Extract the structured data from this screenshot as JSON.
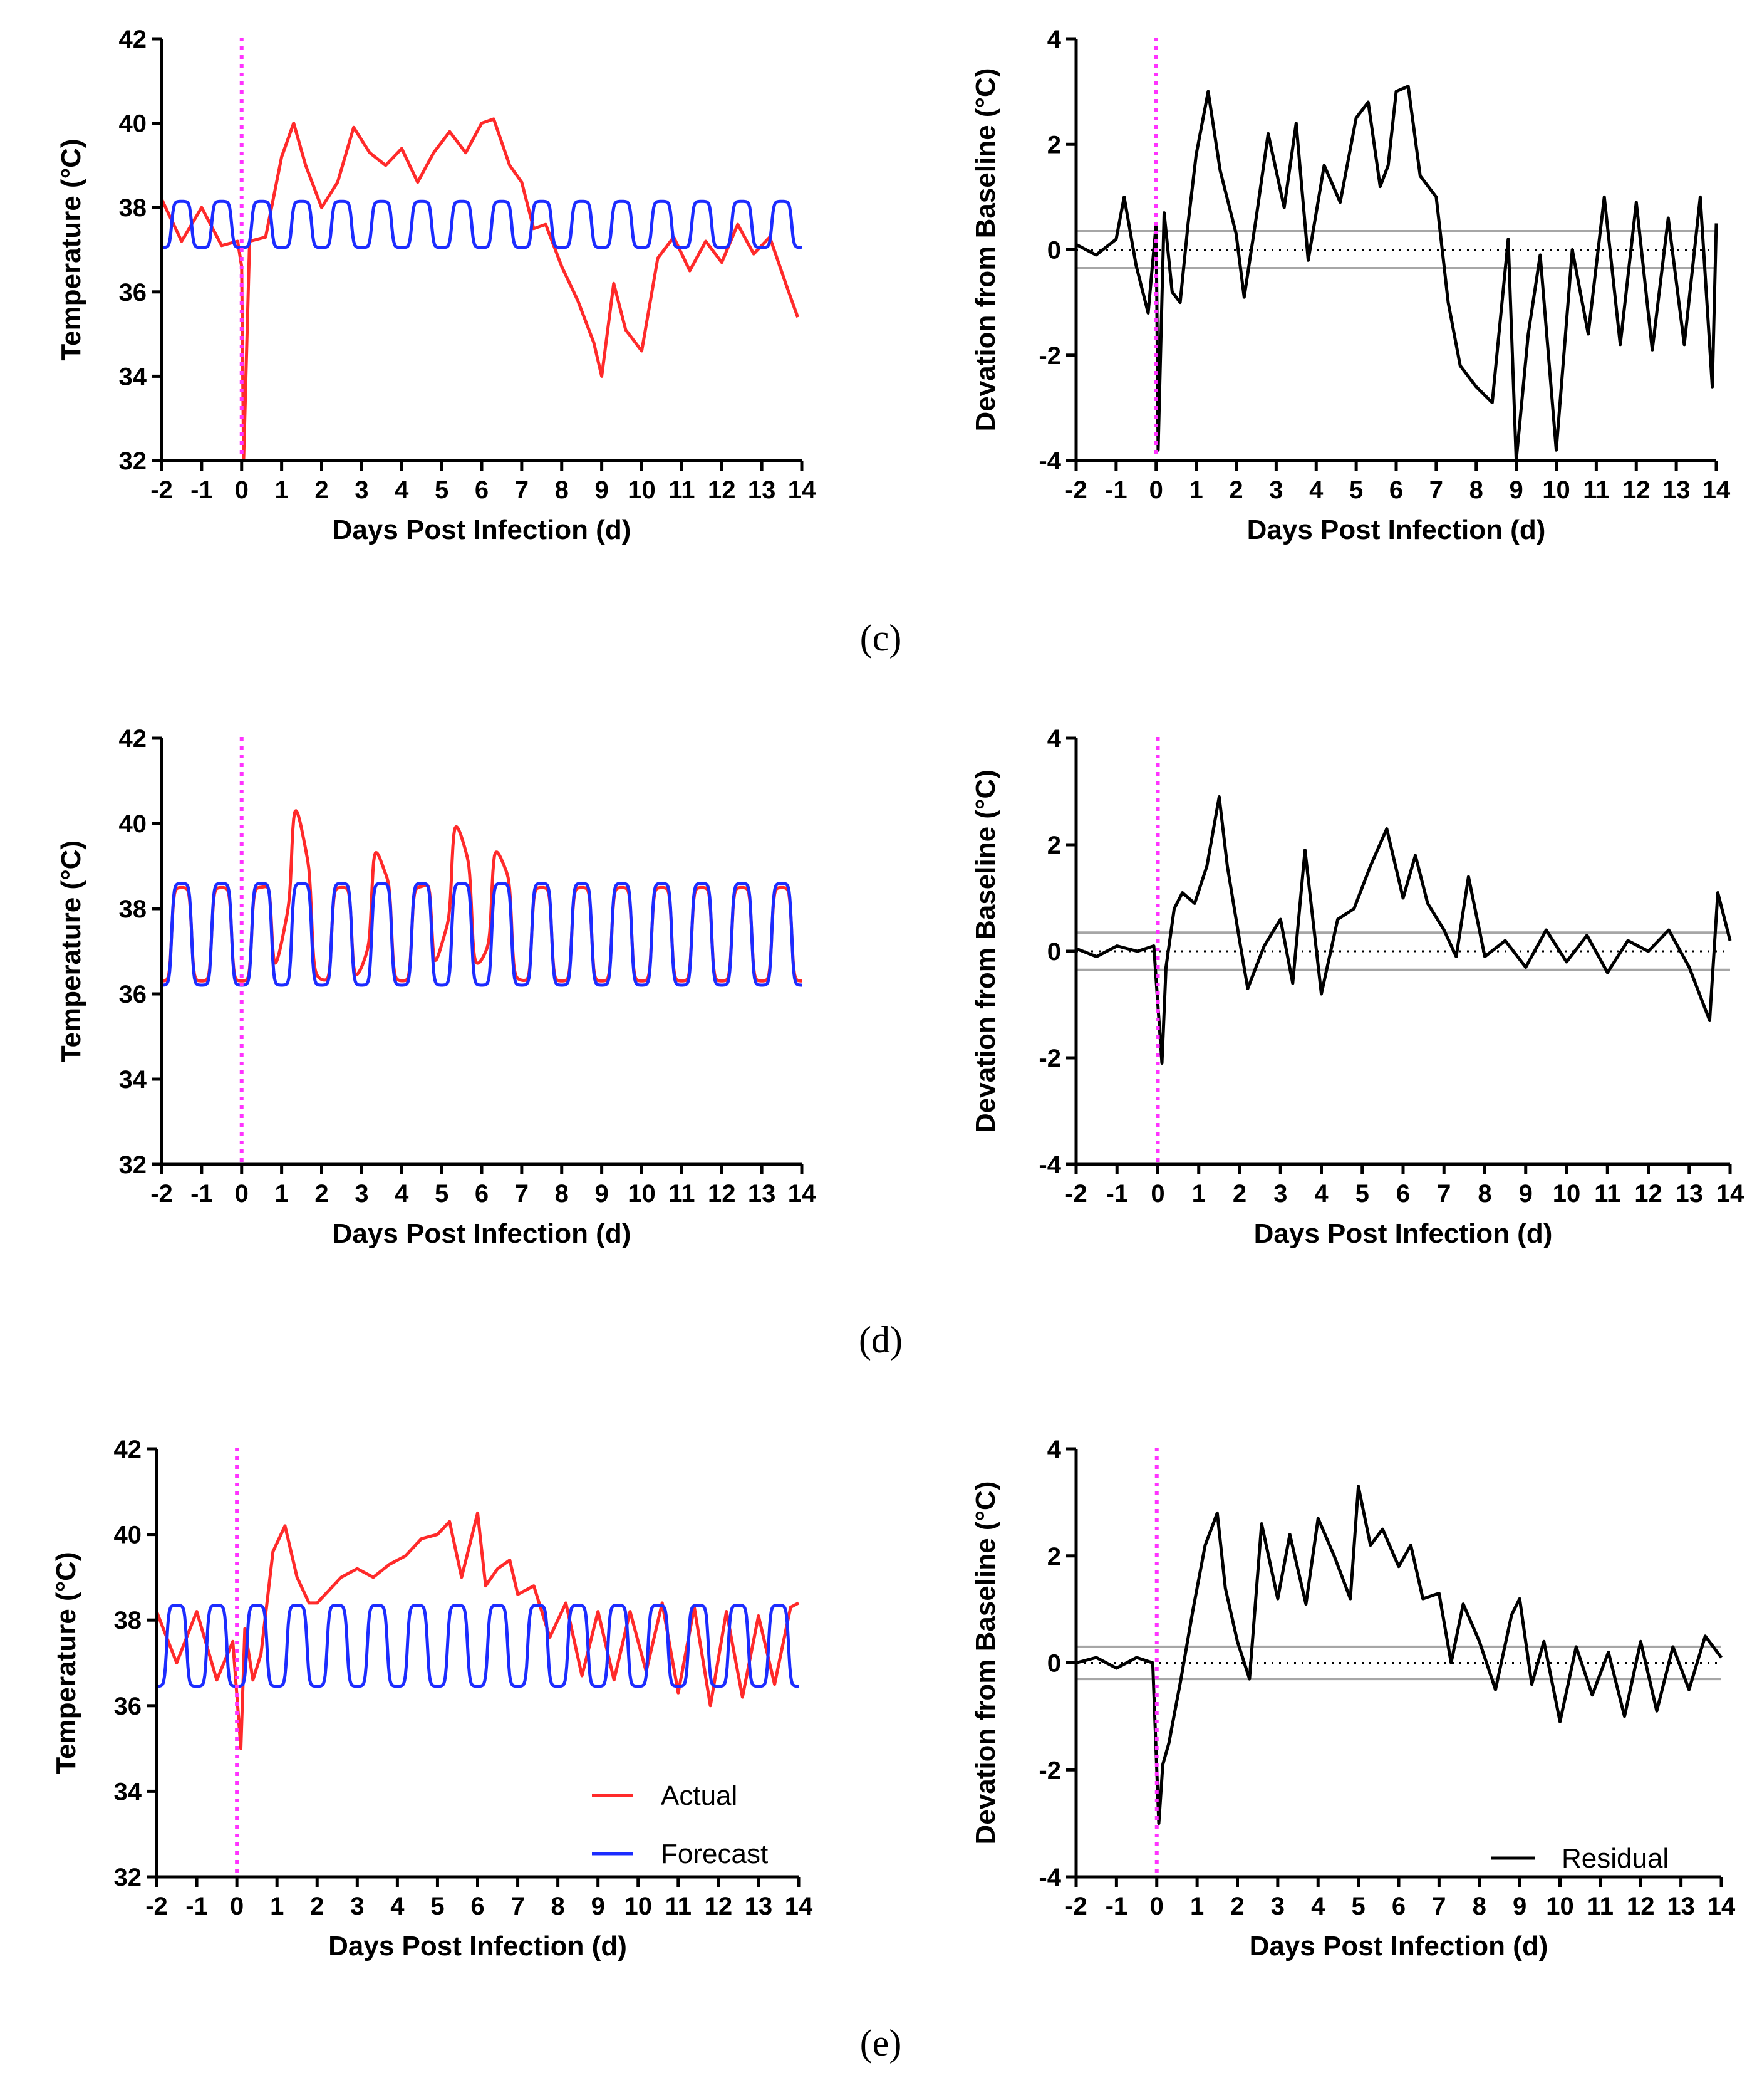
{
  "chart_data": [
    {
      "type": "line",
      "panel": "c",
      "side": "left",
      "xlabel": "Days Post Infection (d)",
      "ylabel": "Temperature (°C)",
      "xlim": [
        -2,
        14
      ],
      "ylim": [
        32,
        42
      ],
      "xticks": [
        "-2",
        "-1",
        "0",
        "1",
        "2",
        "3",
        "4",
        "5",
        "6",
        "7",
        "8",
        "9",
        "10",
        "11",
        "12",
        "13",
        "14"
      ],
      "yticks": [
        "32",
        "34",
        "36",
        "38",
        "40",
        "42"
      ],
      "infection_line_x": 0,
      "series": [
        {
          "name": "Actual",
          "color": "#ff2a2a",
          "x": [
            -2,
            -1.5,
            -1,
            -0.5,
            -0.1,
            0,
            0.05,
            0.2,
            0.6,
            1.0,
            1.3,
            1.6,
            2.0,
            2.4,
            2.8,
            3.2,
            3.6,
            4.0,
            4.4,
            4.8,
            5.2,
            5.6,
            6.0,
            6.3,
            6.7,
            7.0,
            7.3,
            7.6,
            8.0,
            8.4,
            8.8,
            9.0,
            9.3,
            9.6,
            10.0,
            10.4,
            10.8,
            11.2,
            11.6,
            12.0,
            12.4,
            12.8,
            13.2,
            13.6,
            13.9
          ],
          "y": [
            38.2,
            37.2,
            38.0,
            37.1,
            37.2,
            36.6,
            32.0,
            37.2,
            37.3,
            39.2,
            40.0,
            39.0,
            38.0,
            38.6,
            39.9,
            39.3,
            39.0,
            39.4,
            38.6,
            39.3,
            39.8,
            39.3,
            40.0,
            40.1,
            39.0,
            38.6,
            37.5,
            37.6,
            36.6,
            35.8,
            34.8,
            34.0,
            36.2,
            35.1,
            34.6,
            36.8,
            37.3,
            36.5,
            37.2,
            36.7,
            37.6,
            36.9,
            37.3,
            36.2,
            35.4
          ]
        },
        {
          "name": "Forecast",
          "color": "#1c2cff",
          "period": 1,
          "center": 37.6,
          "amplitude": 0.55,
          "x_start": -2,
          "x_end": 14
        }
      ]
    },
    {
      "type": "line",
      "panel": "c",
      "side": "right",
      "xlabel": "Days Post Infection (d)",
      "ylabel": "Devation from Baseline (°C)",
      "xlim": [
        -2,
        14
      ],
      "ylim": [
        -4,
        4
      ],
      "xticks": [
        "-2",
        "-1",
        "0",
        "1",
        "2",
        "3",
        "4",
        "5",
        "6",
        "7",
        "8",
        "9",
        "10",
        "11",
        "12",
        "13",
        "14"
      ],
      "yticks": [
        "-4",
        "-2",
        "0",
        "2",
        "4"
      ],
      "infection_line_x": 0,
      "baseline_band": [
        -0.35,
        0.35
      ],
      "series": [
        {
          "name": "Residual",
          "color": "#000000",
          "x": [
            -2,
            -1.5,
            -1,
            -0.8,
            -0.5,
            -0.2,
            0,
            0.05,
            0.2,
            0.4,
            0.6,
            0.8,
            1.0,
            1.3,
            1.6,
            2.0,
            2.2,
            2.5,
            2.8,
            3.2,
            3.5,
            3.8,
            4.2,
            4.6,
            5.0,
            5.3,
            5.6,
            5.8,
            6.0,
            6.3,
            6.6,
            7.0,
            7.3,
            7.6,
            8.0,
            8.4,
            8.8,
            9.0,
            9.3,
            9.6,
            10.0,
            10.4,
            10.8,
            11.2,
            11.6,
            12.0,
            12.4,
            12.8,
            13.2,
            13.6,
            13.9,
            14
          ],
          "y": [
            0.1,
            -0.1,
            0.2,
            1.0,
            -0.3,
            -1.2,
            0.5,
            -3.8,
            0.7,
            -0.8,
            -1.0,
            0.5,
            1.8,
            3.0,
            1.5,
            0.3,
            -0.9,
            0.6,
            2.2,
            0.8,
            2.4,
            -0.2,
            1.6,
            0.9,
            2.5,
            2.8,
            1.2,
            1.6,
            3.0,
            3.1,
            1.4,
            1.0,
            -1.0,
            -2.2,
            -2.6,
            -2.9,
            0.2,
            -4.0,
            -1.6,
            -0.1,
            -3.8,
            0.0,
            -1.6,
            1.0,
            -1.8,
            0.9,
            -1.9,
            0.6,
            -1.8,
            1.0,
            -2.6,
            0.5
          ]
        }
      ]
    },
    {
      "type": "line",
      "panel": "d",
      "side": "left",
      "xlabel": "Days Post Infection (d)",
      "ylabel": "Temperature (°C)",
      "xlim": [
        -2,
        14
      ],
      "ylim": [
        32,
        42
      ],
      "xticks": [
        "-2",
        "-1",
        "0",
        "1",
        "2",
        "3",
        "4",
        "5",
        "6",
        "7",
        "8",
        "9",
        "10",
        "11",
        "12",
        "13",
        "14"
      ],
      "yticks": [
        "32",
        "34",
        "36",
        "38",
        "40",
        "42"
      ],
      "infection_line_x": 0,
      "series": [
        {
          "name": "Actual",
          "color": "#ff2a2a",
          "period": 1,
          "center": 37.4,
          "amplitude": 1.1,
          "x_start": -2,
          "x_end": 14,
          "bumps": [
            {
              "x": 1.3,
              "height": 1.9,
              "width": 0.35
            },
            {
              "x": 3.3,
              "height": 0.9,
              "width": 0.3
            },
            {
              "x": 5.3,
              "height": 1.5,
              "width": 0.4
            },
            {
              "x": 6.3,
              "height": 0.9,
              "width": 0.35
            }
          ]
        },
        {
          "name": "Forecast",
          "color": "#1c2cff",
          "period": 1,
          "center": 37.4,
          "amplitude": 1.2,
          "x_start": -2,
          "x_end": 14
        }
      ]
    },
    {
      "type": "line",
      "panel": "d",
      "side": "right",
      "xlabel": "Days Post Infection (d)",
      "ylabel": "Devation from Baseline (°C)",
      "xlim": [
        -2,
        14
      ],
      "ylim": [
        -4,
        4
      ],
      "xticks": [
        "-2",
        "-1",
        "0",
        "1",
        "2",
        "3",
        "4",
        "5",
        "6",
        "7",
        "8",
        "9",
        "10",
        "11",
        "12",
        "13",
        "14"
      ],
      "yticks": [
        "-4",
        "-2",
        "0",
        "2",
        "4"
      ],
      "infection_line_x": 0,
      "baseline_band": [
        -0.35,
        0.35
      ],
      "series": [
        {
          "name": "Residual",
          "color": "#000000",
          "x": [
            -2,
            -1.5,
            -1,
            -0.5,
            -0.1,
            0.1,
            0.2,
            0.4,
            0.6,
            0.9,
            1.2,
            1.5,
            1.7,
            2.0,
            2.2,
            2.6,
            3.0,
            3.3,
            3.6,
            4.0,
            4.4,
            4.8,
            5.2,
            5.6,
            6.0,
            6.3,
            6.6,
            7.0,
            7.3,
            7.6,
            8.0,
            8.5,
            9.0,
            9.5,
            10.0,
            10.5,
            11.0,
            11.5,
            12.0,
            12.5,
            13.0,
            13.5,
            13.7,
            14
          ],
          "y": [
            0.05,
            -0.1,
            0.1,
            0.0,
            0.1,
            -2.1,
            -0.3,
            0.8,
            1.1,
            0.9,
            1.6,
            2.9,
            1.6,
            0.2,
            -0.7,
            0.1,
            0.6,
            -0.6,
            1.9,
            -0.8,
            0.6,
            0.8,
            1.6,
            2.3,
            1.0,
            1.8,
            0.9,
            0.4,
            -0.1,
            1.4,
            -0.1,
            0.2,
            -0.3,
            0.4,
            -0.2,
            0.3,
            -0.4,
            0.2,
            0.0,
            0.4,
            -0.3,
            -1.3,
            1.1,
            0.2
          ]
        }
      ]
    },
    {
      "type": "line",
      "panel": "e",
      "side": "left",
      "xlabel": "Days Post Infection (d)",
      "ylabel": "Temperature (°C)",
      "xlim": [
        -2,
        14
      ],
      "ylim": [
        32,
        42
      ],
      "xticks": [
        "-2",
        "-1",
        "0",
        "1",
        "2",
        "3",
        "4",
        "5",
        "6",
        "7",
        "8",
        "9",
        "10",
        "11",
        "12",
        "13",
        "14"
      ],
      "yticks": [
        "32",
        "34",
        "36",
        "38",
        "40",
        "42"
      ],
      "infection_line_x": 0,
      "legend": {
        "position": "bottom-right",
        "entries": [
          "Actual",
          "Forecast"
        ]
      },
      "series": [
        {
          "name": "Actual",
          "color": "#ff2a2a",
          "x": [
            -2,
            -1.5,
            -1,
            -0.5,
            -0.1,
            0.1,
            0.2,
            0.4,
            0.6,
            0.9,
            1.2,
            1.5,
            1.8,
            2.0,
            2.3,
            2.6,
            3.0,
            3.4,
            3.8,
            4.2,
            4.6,
            5.0,
            5.3,
            5.6,
            6.0,
            6.2,
            6.5,
            6.8,
            7.0,
            7.4,
            7.8,
            8.2,
            8.6,
            9.0,
            9.4,
            9.8,
            10.2,
            10.6,
            11.0,
            11.4,
            11.8,
            12.2,
            12.6,
            13.0,
            13.4,
            13.8,
            14
          ],
          "y": [
            38.2,
            37.0,
            38.2,
            36.6,
            37.5,
            35.0,
            37.8,
            36.6,
            37.2,
            39.6,
            40.2,
            39.0,
            38.4,
            38.4,
            38.7,
            39.0,
            39.2,
            39.0,
            39.3,
            39.5,
            39.9,
            40.0,
            40.3,
            39.0,
            40.5,
            38.8,
            39.2,
            39.4,
            38.6,
            38.8,
            37.6,
            38.4,
            36.7,
            38.2,
            36.6,
            38.2,
            36.8,
            38.4,
            36.3,
            38.3,
            36.0,
            38.2,
            36.2,
            38.1,
            36.5,
            38.3,
            38.4
          ]
        },
        {
          "name": "Forecast",
          "color": "#1c2cff",
          "period": 1,
          "center": 37.4,
          "amplitude": 0.95,
          "x_start": -2,
          "x_end": 14
        }
      ]
    },
    {
      "type": "line",
      "panel": "e",
      "side": "right",
      "xlabel": "Days Post Infection (d)",
      "ylabel": "Devation from Baseline (°C)",
      "xlim": [
        -2,
        14
      ],
      "ylim": [
        -4,
        4
      ],
      "xticks": [
        "-2",
        "-1",
        "0",
        "1",
        "2",
        "3",
        "4",
        "5",
        "6",
        "7",
        "8",
        "9",
        "10",
        "11",
        "12",
        "13",
        "14"
      ],
      "yticks": [
        "-4",
        "-2",
        "0",
        "2",
        "4"
      ],
      "infection_line_x": 0,
      "baseline_band": [
        -0.3,
        0.3
      ],
      "legend": {
        "position": "bottom-right",
        "entries": [
          "Residual"
        ]
      },
      "series": [
        {
          "name": "Residual",
          "color": "#000000",
          "x": [
            -2,
            -1.5,
            -1,
            -0.5,
            -0.1,
            0.05,
            0.15,
            0.3,
            0.6,
            0.9,
            1.2,
            1.5,
            1.7,
            2.0,
            2.3,
            2.6,
            3.0,
            3.3,
            3.7,
            4.0,
            4.4,
            4.8,
            5.0,
            5.3,
            5.6,
            6.0,
            6.3,
            6.6,
            7.0,
            7.3,
            7.6,
            8.0,
            8.4,
            8.8,
            9.0,
            9.3,
            9.6,
            10.0,
            10.4,
            10.8,
            11.2,
            11.6,
            12.0,
            12.4,
            12.8,
            13.2,
            13.6,
            14
          ],
          "y": [
            0.0,
            0.1,
            -0.1,
            0.1,
            0.0,
            -3.0,
            -1.9,
            -1.5,
            -0.3,
            1.0,
            2.2,
            2.8,
            1.4,
            0.4,
            -0.3,
            2.6,
            1.2,
            2.4,
            1.1,
            2.7,
            2.0,
            1.2,
            3.3,
            2.2,
            2.5,
            1.8,
            2.2,
            1.2,
            1.3,
            0.0,
            1.1,
            0.4,
            -0.5,
            0.9,
            1.2,
            -0.4,
            0.4,
            -1.1,
            0.3,
            -0.6,
            0.2,
            -1.0,
            0.4,
            -0.9,
            0.3,
            -0.5,
            0.5,
            0.1
          ]
        }
      ]
    }
  ],
  "panel_labels": [
    "(c)",
    "(d)",
    "(e)"
  ],
  "legend_entries": [
    "Actual",
    "Forecast",
    "Residual"
  ],
  "colors": {
    "actual": "#ff2a2a",
    "forecast": "#1c2cff",
    "residual": "#000000",
    "infection_line": "#ff33ff",
    "baseline_band": "#a6a6a6",
    "axis": "#000000"
  }
}
